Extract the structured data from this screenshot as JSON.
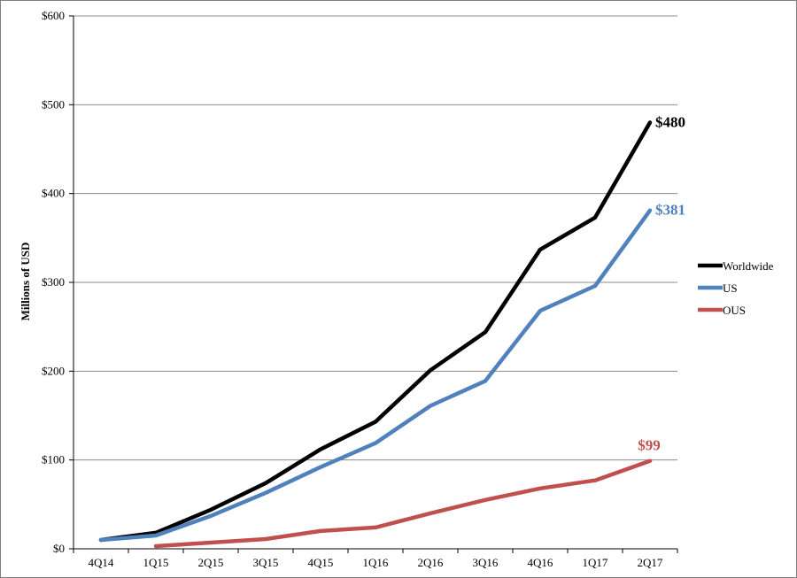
{
  "chart_data": {
    "type": "line",
    "title": "",
    "xlabel": "",
    "ylabel": "Millions of USD",
    "categories": [
      "4Q14",
      "1Q15",
      "2Q15",
      "3Q15",
      "4Q15",
      "1Q16",
      "2Q16",
      "3Q16",
      "4Q16",
      "1Q17",
      "2Q17"
    ],
    "ylim": [
      0,
      600
    ],
    "yticks": [
      0,
      100,
      200,
      300,
      400,
      500,
      600
    ],
    "ytick_labels": [
      "$0",
      "$100",
      "$200",
      "$300",
      "$400",
      "$500",
      "$600"
    ],
    "grid": "horizontal",
    "legend_position": "right",
    "series": [
      {
        "name": "Worldwide",
        "color": "#000000",
        "values": [
          10,
          18,
          44,
          74,
          112,
          143,
          201,
          244,
          337,
          373,
          480
        ],
        "end_label": "$480"
      },
      {
        "name": "US",
        "color": "#4f81bd",
        "values": [
          10,
          15,
          37,
          63,
          92,
          119,
          161,
          189,
          268,
          296,
          381
        ],
        "end_label": "$381"
      },
      {
        "name": "OUS",
        "color": "#c0504d",
        "values": [
          null,
          3,
          7,
          11,
          20,
          24,
          40,
          55,
          68,
          77,
          99
        ],
        "end_label": "$99"
      }
    ]
  }
}
